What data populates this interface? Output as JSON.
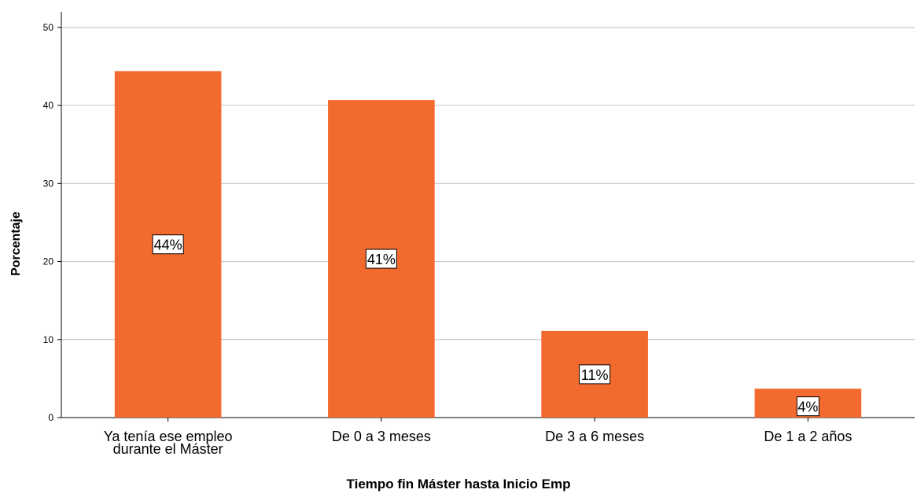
{
  "chart_data": {
    "type": "bar",
    "categories": [
      [
        "Ya tenía ese empleo",
        "durante el Máster"
      ],
      [
        "De 0 a 3 meses"
      ],
      [
        "De 3 a 6 meses"
      ],
      [
        "De 1 a 2 años"
      ]
    ],
    "values": [
      44.4,
      40.7,
      11.1,
      3.7
    ],
    "data_labels": [
      "44%",
      "41%",
      "11%",
      "4%"
    ],
    "title": "",
    "xlabel": "Tiempo fin  Máster hasta Inicio Emp",
    "ylabel": "Porcentaje",
    "ylim": [
      0,
      52
    ],
    "yticks": [
      0,
      10,
      20,
      30,
      40,
      50
    ],
    "grid": true,
    "bar_color": "#f26a2e",
    "legend": "none"
  }
}
